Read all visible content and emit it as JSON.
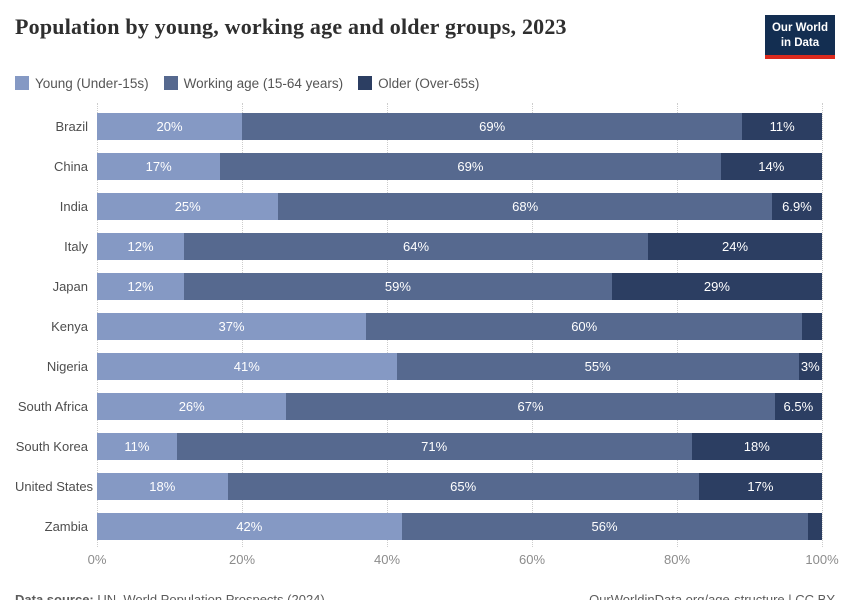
{
  "title": "Population by young, working age and older groups, 2023",
  "logo": {
    "line1": "Our World",
    "line2": "in Data"
  },
  "colors": {
    "young": "#8599c4",
    "working": "#56698f",
    "older": "#2c3e62",
    "logo_navy": "#132e51",
    "logo_red": "#dc2a1d"
  },
  "legend": [
    {
      "label": "Young (Under-15s)",
      "color": "#8599c4"
    },
    {
      "label": "Working age (15-64 years)",
      "color": "#56698f"
    },
    {
      "label": "Older (Over-65s)",
      "color": "#2c3e62"
    }
  ],
  "chart_data": {
    "type": "bar",
    "stacked": true,
    "orientation": "horizontal",
    "title": "Population by young, working age and older groups, 2023",
    "categories": [
      "Brazil",
      "China",
      "India",
      "Italy",
      "Japan",
      "Kenya",
      "Nigeria",
      "South Africa",
      "South Korea",
      "United States",
      "Zambia"
    ],
    "series": [
      {
        "name": "Young (Under-15s)",
        "values": [
          20,
          17,
          25,
          12,
          12,
          37,
          41,
          26,
          11,
          18,
          42
        ],
        "labels": [
          "20%",
          "17%",
          "25%",
          "12%",
          "12%",
          "37%",
          "41%",
          "26%",
          "11%",
          "18%",
          "42%"
        ]
      },
      {
        "name": "Working age (15-64 years)",
        "values": [
          69,
          69,
          68,
          64,
          59,
          60,
          55,
          67,
          71,
          65,
          56
        ],
        "labels": [
          "69%",
          "69%",
          "68%",
          "64%",
          "59%",
          "60%",
          "55%",
          "67%",
          "71%",
          "65%",
          "56%"
        ]
      },
      {
        "name": "Older (Over-65s)",
        "values": [
          11,
          14,
          6.9,
          24,
          29,
          2.7,
          3.2,
          6.5,
          18,
          17,
          2
        ],
        "labels": [
          "11%",
          "14%",
          "6.9%",
          "24%",
          "29%",
          "",
          "3%",
          "6.5%",
          "18%",
          "17%",
          ""
        ]
      }
    ],
    "x_ticks": [
      "0%",
      "20%",
      "40%",
      "60%",
      "80%",
      "100%"
    ],
    "xlim": [
      0,
      100
    ],
    "grid": "vertical-dotted",
    "legend_position": "top"
  },
  "footer": {
    "source_label": "Data source:",
    "source_text": " UN, World Population Prospects (2024)",
    "credit": "OurWorldinData.org/age-structure | CC BY"
  }
}
